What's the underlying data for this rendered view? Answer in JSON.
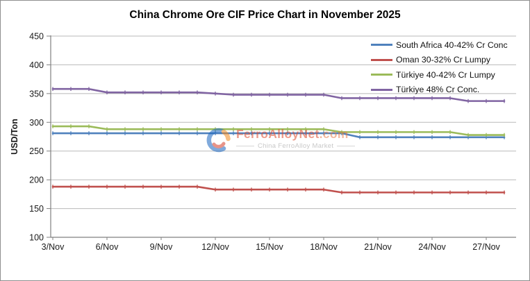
{
  "chart_data": {
    "type": "line",
    "title": "China Chrome Ore CIF Price Chart in November 2025",
    "xlabel": "",
    "ylabel": "USD/Ton",
    "ylim": [
      100,
      450
    ],
    "ytick_step": 50,
    "grid": "horizontal",
    "legend_position": "top-right",
    "x_days": [
      3,
      4,
      5,
      6,
      7,
      8,
      9,
      10,
      11,
      12,
      13,
      14,
      15,
      16,
      17,
      18,
      19,
      20,
      21,
      22,
      23,
      24,
      25,
      26,
      27,
      28
    ],
    "xtick_days": [
      3,
      6,
      9,
      12,
      15,
      18,
      21,
      24,
      27
    ],
    "xtick_labels": [
      "3/Nov",
      "6/Nov",
      "9/Nov",
      "12/Nov",
      "15/Nov",
      "18/Nov",
      "21/Nov",
      "24/Nov",
      "27/Nov"
    ],
    "ytick_labels": [
      "100",
      "150",
      "200",
      "250",
      "300",
      "350",
      "400",
      "450"
    ],
    "series": [
      {
        "name": "South Africa 40-42% Cr Conc",
        "color": "#4F81BD",
        "values": [
          281,
          281,
          281,
          281,
          281,
          281,
          281,
          281,
          281,
          281,
          281,
          281,
          281,
          281,
          281,
          281,
          281,
          274,
          274,
          274,
          274,
          274,
          274,
          274,
          274,
          274
        ]
      },
      {
        "name": "Oman 30-32% Cr Lumpy",
        "color": "#C0504D",
        "values": [
          188,
          188,
          188,
          188,
          188,
          188,
          188,
          188,
          188,
          183,
          183,
          183,
          183,
          183,
          183,
          183,
          178,
          178,
          178,
          178,
          178,
          178,
          178,
          178,
          178,
          178
        ]
      },
      {
        "name": "Türkiye 40-42% Cr Lumpy",
        "color": "#9BBB59",
        "values": [
          293,
          293,
          293,
          288,
          288,
          288,
          288,
          288,
          288,
          288,
          288,
          288,
          288,
          288,
          288,
          288,
          283,
          283,
          283,
          283,
          283,
          283,
          283,
          278,
          278,
          278
        ]
      },
      {
        "name": "Türkiye 48% Cr Conc.",
        "color": "#8064A2",
        "values": [
          358,
          358,
          358,
          352,
          352,
          352,
          352,
          352,
          352,
          350,
          348,
          348,
          348,
          348,
          348,
          348,
          342,
          342,
          342,
          342,
          342,
          342,
          342,
          337,
          337,
          337
        ]
      }
    ],
    "axis_color": "#808080",
    "gridline_color": "#b9b9b9"
  },
  "watermark": {
    "brand": "FerroAlloyNet",
    "tld": ".com",
    "tagline": "China FerroAlloy Market",
    "brand_color": "#E04A2C",
    "tld_color": "#E8743C",
    "icon_blue": "#1A66C0",
    "icon_orange": "#F28A1E",
    "icon_red": "#D43D2A"
  }
}
